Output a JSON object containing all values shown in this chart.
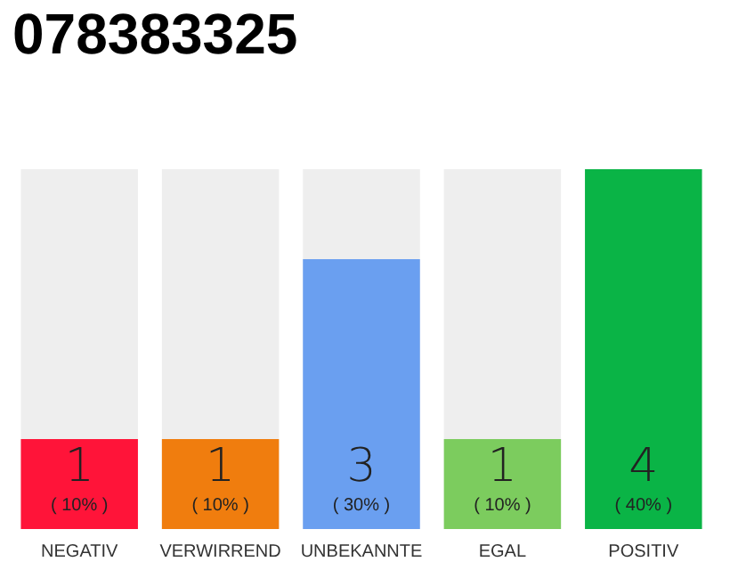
{
  "chart_data": {
    "type": "bar",
    "title": "078383325",
    "categories": [
      "NEGATIV",
      "VERWIRREND",
      "UNBEKANNTE",
      "EGAL",
      "POSITIV"
    ],
    "values": [
      1,
      1,
      3,
      1,
      4
    ],
    "colors": [
      "#ff1439",
      "#f07d0e",
      "#6a9ff0",
      "#7ccc5e",
      "#0ab446"
    ],
    "value_labels": [
      "1\n( 10% )",
      "1\n( 10% )",
      "3\n( 30% )",
      "1\n( 10% )",
      "4\n( 40% )"
    ],
    "ylim": [
      0,
      4
    ]
  }
}
